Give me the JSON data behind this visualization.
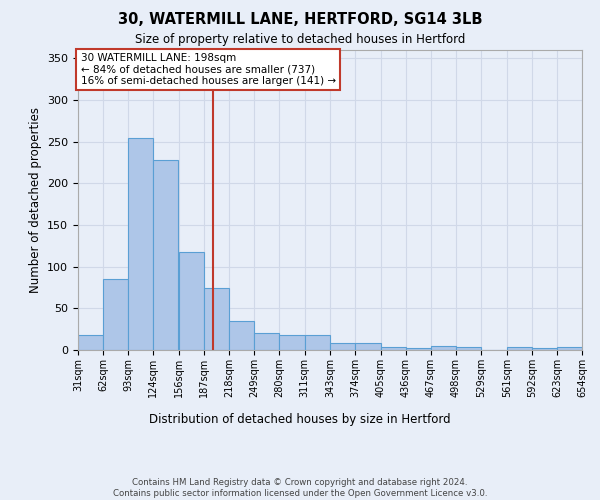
{
  "title1": "30, WATERMILL LANE, HERTFORD, SG14 3LB",
  "title2": "Size of property relative to detached houses in Hertford",
  "xlabel": "Distribution of detached houses by size in Hertford",
  "ylabel": "Number of detached properties",
  "bin_edges": [
    31,
    62,
    93,
    124,
    156,
    187,
    218,
    249,
    280,
    311,
    343,
    374,
    405,
    436,
    467,
    498,
    529,
    561,
    592,
    623,
    654
  ],
  "bar_heights": [
    18,
    85,
    255,
    228,
    118,
    75,
    35,
    20,
    18,
    18,
    9,
    9,
    4,
    3,
    5,
    4,
    0,
    4,
    3,
    4
  ],
  "bar_color": "#aec6e8",
  "bar_edge_color": "#5a9fd4",
  "property_size": 198,
  "vline_color": "#c0392b",
  "annotation_text": "30 WATERMILL LANE: 198sqm\n← 84% of detached houses are smaller (737)\n16% of semi-detached houses are larger (141) →",
  "annotation_box_color": "white",
  "annotation_box_edge_color": "#c0392b",
  "ylim": [
    0,
    360
  ],
  "yticks": [
    0,
    50,
    100,
    150,
    200,
    250,
    300,
    350
  ],
  "tick_labels": [
    "31sqm",
    "62sqm",
    "93sqm",
    "124sqm",
    "156sqm",
    "187sqm",
    "218sqm",
    "249sqm",
    "280sqm",
    "311sqm",
    "343sqm",
    "374sqm",
    "405sqm",
    "436sqm",
    "467sqm",
    "498sqm",
    "529sqm",
    "561sqm",
    "592sqm",
    "623sqm",
    "654sqm"
  ],
  "footer_text": "Contains HM Land Registry data © Crown copyright and database right 2024.\nContains public sector information licensed under the Open Government Licence v3.0.",
  "grid_color": "#d0d8e8",
  "background_color": "#e8eef8",
  "plot_bg_color": "#e8eef8"
}
